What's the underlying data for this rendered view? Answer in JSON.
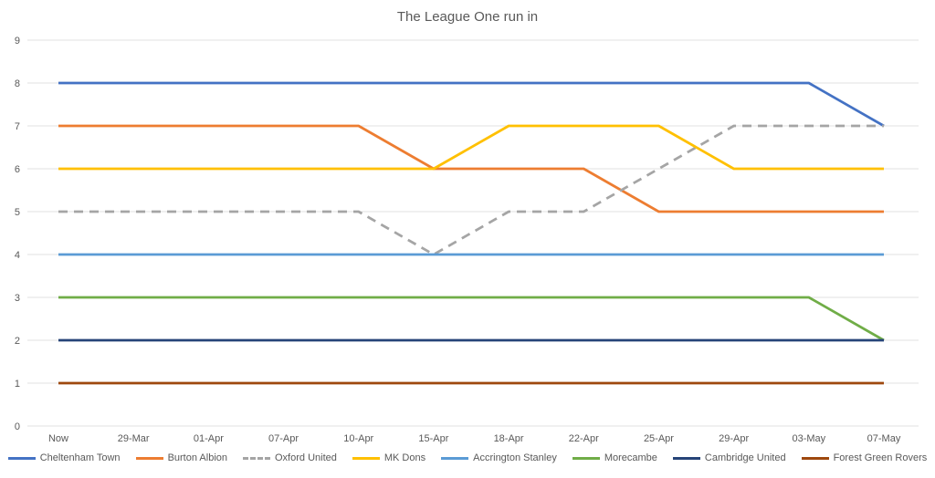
{
  "chart": {
    "title": "The League One run in"
  },
  "chart_data": {
    "type": "line",
    "title": "The League One run in",
    "categories": [
      "Now",
      "29-Mar",
      "01-Apr",
      "07-Apr",
      "10-Apr",
      "15-Apr",
      "18-Apr",
      "22-Apr",
      "25-Apr",
      "29-Apr",
      "03-May",
      "07-May"
    ],
    "series": [
      {
        "name": "Cheltenham Town",
        "color": "#4472C4",
        "style": "solid",
        "values": [
          8,
          8,
          8,
          8,
          8,
          8,
          8,
          8,
          8,
          8,
          8,
          7
        ]
      },
      {
        "name": "Burton Albion",
        "color": "#ED7D31",
        "style": "solid",
        "values": [
          7,
          7,
          7,
          7,
          7,
          6,
          6,
          6,
          5,
          5,
          5,
          5
        ]
      },
      {
        "name": "Oxford United",
        "color": "#A5A5A5",
        "style": "dashed",
        "values": [
          5,
          5,
          5,
          5,
          5,
          4,
          5,
          5,
          6,
          7,
          7,
          7
        ]
      },
      {
        "name": "MK Dons",
        "color": "#FFC000",
        "style": "solid",
        "values": [
          6,
          6,
          6,
          6,
          6,
          6,
          7,
          7,
          7,
          6,
          6,
          6
        ]
      },
      {
        "name": "Accrington Stanley",
        "color": "#5B9BD5",
        "style": "solid",
        "values": [
          4,
          4,
          4,
          4,
          4,
          4,
          4,
          4,
          4,
          4,
          4,
          4
        ]
      },
      {
        "name": "Morecambe",
        "color": "#70AD47",
        "style": "solid",
        "values": [
          3,
          3,
          3,
          3,
          3,
          3,
          3,
          3,
          3,
          3,
          3,
          2
        ]
      },
      {
        "name": "Cambridge United",
        "color": "#264478",
        "style": "solid",
        "values": [
          2,
          2,
          2,
          2,
          2,
          2,
          2,
          2,
          2,
          2,
          2,
          2
        ]
      },
      {
        "name": "Forest Green Rovers",
        "color": "#9E480E",
        "style": "solid",
        "values": [
          1,
          1,
          1,
          1,
          1,
          1,
          1,
          1,
          1,
          1,
          1,
          1
        ]
      }
    ],
    "ylim": [
      0,
      9
    ],
    "yticks": [
      0,
      1,
      2,
      3,
      4,
      5,
      6,
      7,
      8,
      9
    ],
    "xlabel": "",
    "ylabel": "",
    "grid": true,
    "legend_position": "bottom",
    "axis_text_color": "#595959",
    "grid_color": "#E2E2E2"
  }
}
